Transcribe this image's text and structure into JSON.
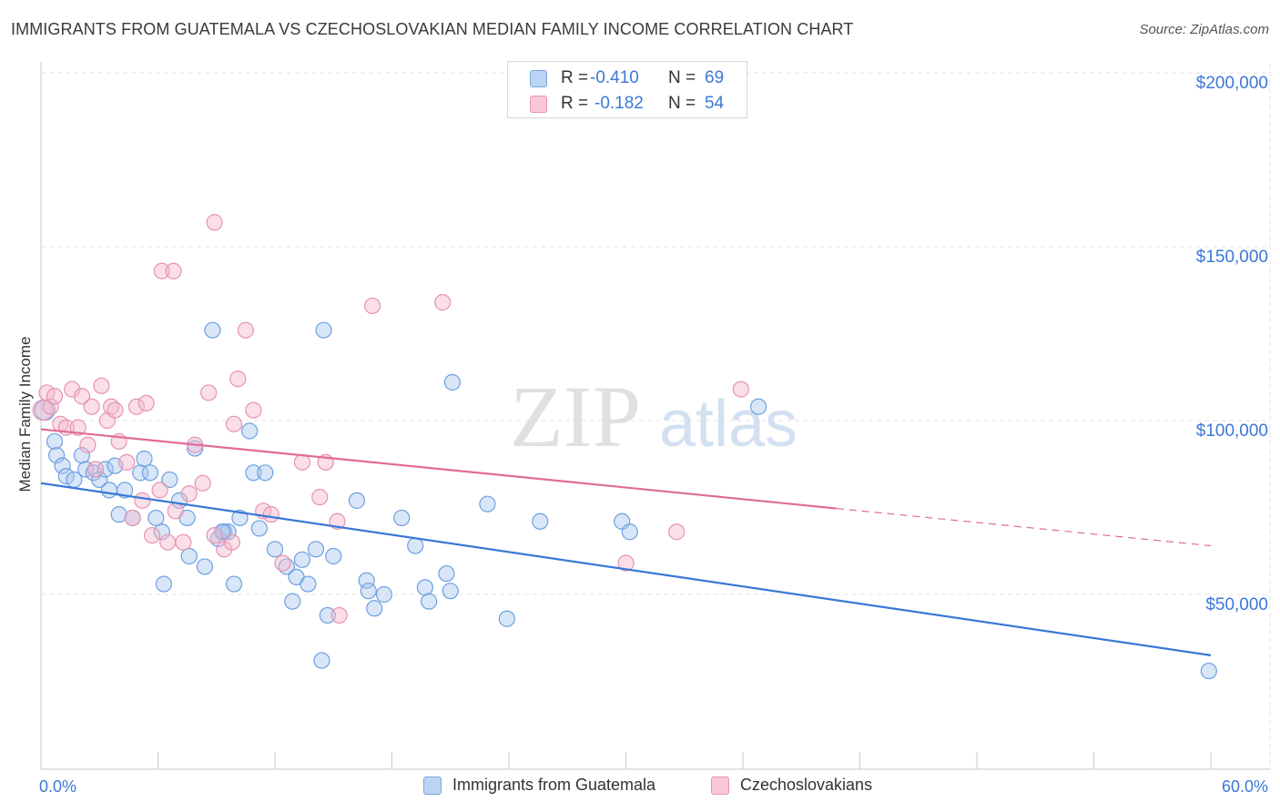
{
  "title": "IMMIGRANTS FROM GUATEMALA VS CZECHOSLOVAKIAN MEDIAN FAMILY INCOME CORRELATION CHART",
  "source": "Source: ZipAtlas.com",
  "watermark": {
    "zip": "ZIP",
    "atlas": "atlas"
  },
  "colors": {
    "blue": "#3a78d6",
    "blue_fill": "#a9c8f0",
    "pink": "#e06b97",
    "pink_fill": "#f5b8cc",
    "axis_text": "#3b78d8",
    "grid": "#e3e3e3"
  },
  "stats_legend": [
    {
      "r_label": "R = ",
      "r_value": "-0.410",
      "n_label": "N = ",
      "n_value": "69",
      "series": "blue"
    },
    {
      "r_label": "R = ",
      "r_value": "-0.182",
      "n_label": "N = ",
      "n_value": "54",
      "series": "pink"
    }
  ],
  "chart_data": {
    "type": "scatter",
    "title": "IMMIGRANTS FROM GUATEMALA VS CZECHOSLOVAKIAN MEDIAN FAMILY INCOME CORRELATION CHART",
    "xlabel": "",
    "ylabel": "Median Family Income",
    "xlim": [
      0,
      60
    ],
    "ylim": [
      0,
      210000
    ],
    "x_tick_labels": [
      "0.0%",
      "60.0%"
    ],
    "y_ticks": [
      50000,
      100000,
      150000,
      200000
    ],
    "y_tick_labels": [
      "$50,000",
      "$100,000",
      "$150,000",
      "$200,000"
    ],
    "grid": true,
    "legend_position": "bottom",
    "series": [
      {
        "name": "Immigrants from Guatemala",
        "color": "blue",
        "trend": {
          "x": [
            0,
            60
          ],
          "y": [
            82000,
            32500
          ],
          "dashed_from": null
        },
        "points": [
          [
            0.2,
            103000
          ],
          [
            0.7,
            94000
          ],
          [
            0.8,
            90000
          ],
          [
            1.1,
            87000
          ],
          [
            1.3,
            84000
          ],
          [
            1.7,
            83000
          ],
          [
            2.1,
            90000
          ],
          [
            2.3,
            86000
          ],
          [
            2.7,
            85000
          ],
          [
            3.0,
            83000
          ],
          [
            3.3,
            86000
          ],
          [
            3.5,
            80000
          ],
          [
            3.8,
            87000
          ],
          [
            4.0,
            73000
          ],
          [
            4.3,
            80000
          ],
          [
            4.7,
            72000
          ],
          [
            5.1,
            85000
          ],
          [
            5.3,
            89000
          ],
          [
            5.6,
            85000
          ],
          [
            5.9,
            72000
          ],
          [
            6.2,
            68000
          ],
          [
            6.3,
            53000
          ],
          [
            6.6,
            83000
          ],
          [
            7.1,
            77000
          ],
          [
            7.5,
            72000
          ],
          [
            7.6,
            61000
          ],
          [
            7.9,
            92000
          ],
          [
            8.4,
            58000
          ],
          [
            8.8,
            126000
          ],
          [
            9.1,
            66000
          ],
          [
            9.4,
            68000
          ],
          [
            9.6,
            68000
          ],
          [
            9.9,
            53000
          ],
          [
            10.2,
            72000
          ],
          [
            10.7,
            97000
          ],
          [
            10.9,
            85000
          ],
          [
            11.2,
            69000
          ],
          [
            11.5,
            85000
          ],
          [
            12.0,
            63000
          ],
          [
            12.6,
            58000
          ],
          [
            12.9,
            48000
          ],
          [
            13.1,
            55000
          ],
          [
            13.4,
            60000
          ],
          [
            13.7,
            53000
          ],
          [
            14.1,
            63000
          ],
          [
            14.5,
            126000
          ],
          [
            14.7,
            44000
          ],
          [
            14.4,
            31000
          ],
          [
            15.0,
            61000
          ],
          [
            16.2,
            77000
          ],
          [
            16.7,
            54000
          ],
          [
            16.8,
            51000
          ],
          [
            17.1,
            46000
          ],
          [
            17.6,
            50000
          ],
          [
            18.5,
            72000
          ],
          [
            19.2,
            64000
          ],
          [
            19.7,
            52000
          ],
          [
            19.9,
            48000
          ],
          [
            20.8,
            56000
          ],
          [
            21.0,
            51000
          ],
          [
            21.1,
            111000
          ],
          [
            22.9,
            76000
          ],
          [
            23.9,
            43000
          ],
          [
            25.6,
            71000
          ],
          [
            29.8,
            71000
          ],
          [
            30.2,
            68000
          ],
          [
            36.8,
            104000
          ],
          [
            59.9,
            28000
          ],
          [
            9.3,
            68000
          ]
        ]
      },
      {
        "name": "Czechoslovakians",
        "color": "pink",
        "trend": {
          "x": [
            0,
            60
          ],
          "y": [
            97500,
            64000
          ],
          "dashed_from": 40.8
        },
        "points": [
          [
            0.1,
            103000
          ],
          [
            0.3,
            108000
          ],
          [
            0.5,
            104000
          ],
          [
            0.7,
            107000
          ],
          [
            1.0,
            99000
          ],
          [
            1.3,
            98000
          ],
          [
            1.6,
            109000
          ],
          [
            1.9,
            98000
          ],
          [
            2.1,
            107000
          ],
          [
            2.4,
            93000
          ],
          [
            2.6,
            104000
          ],
          [
            2.8,
            86000
          ],
          [
            3.1,
            110000
          ],
          [
            3.4,
            100000
          ],
          [
            3.6,
            104000
          ],
          [
            3.8,
            103000
          ],
          [
            4.0,
            94000
          ],
          [
            4.4,
            88000
          ],
          [
            4.7,
            72000
          ],
          [
            4.9,
            104000
          ],
          [
            5.2,
            77000
          ],
          [
            5.4,
            105000
          ],
          [
            5.7,
            67000
          ],
          [
            6.1,
            80000
          ],
          [
            6.2,
            143000
          ],
          [
            6.5,
            65000
          ],
          [
            6.8,
            143000
          ],
          [
            6.9,
            74000
          ],
          [
            7.3,
            65000
          ],
          [
            7.6,
            79000
          ],
          [
            7.9,
            93000
          ],
          [
            8.3,
            82000
          ],
          [
            8.6,
            108000
          ],
          [
            8.9,
            67000
          ],
          [
            8.9,
            157000
          ],
          [
            9.4,
            63000
          ],
          [
            9.8,
            65000
          ],
          [
            9.9,
            99000
          ],
          [
            10.1,
            112000
          ],
          [
            10.5,
            126000
          ],
          [
            10.9,
            103000
          ],
          [
            11.4,
            74000
          ],
          [
            11.8,
            73000
          ],
          [
            12.4,
            59000
          ],
          [
            13.4,
            88000
          ],
          [
            14.3,
            78000
          ],
          [
            14.6,
            88000
          ],
          [
            15.3,
            44000
          ],
          [
            15.2,
            71000
          ],
          [
            17.0,
            133000
          ],
          [
            20.6,
            134000
          ],
          [
            30.0,
            59000
          ],
          [
            32.6,
            68000
          ],
          [
            35.9,
            109000
          ]
        ]
      }
    ]
  }
}
